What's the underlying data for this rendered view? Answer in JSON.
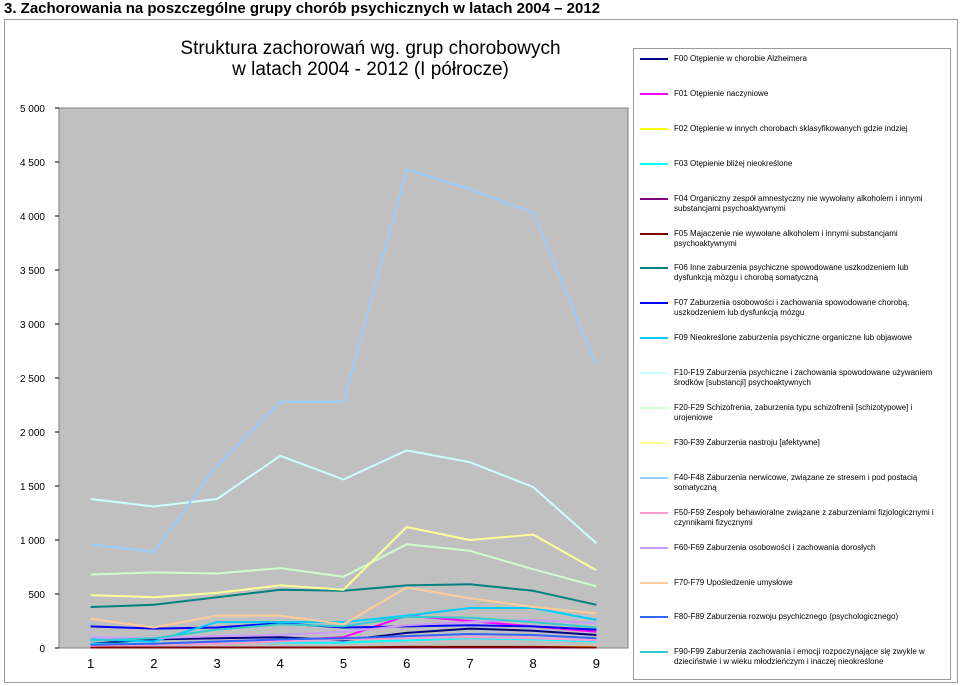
{
  "page": {
    "heading": "3. Zachorowania na poszczególne grupy chorób psychicznych w latach 2004 – 2012"
  },
  "chart_data": {
    "type": "line",
    "title_line1": "Struktura zachorowań wg. grup chorobowych",
    "title_line2": "w latach 2004 - 2012 (I półrocze)",
    "xlabel": "",
    "ylabel": "",
    "categories": [
      "1",
      "2",
      "3",
      "4",
      "5",
      "6",
      "7",
      "8",
      "9"
    ],
    "ylim": [
      0,
      5000
    ],
    "yticks": [
      {
        "value": 0,
        "label": "0"
      },
      {
        "value": 500,
        "label": "500"
      },
      {
        "value": 1000,
        "label": "1 000"
      },
      {
        "value": 1500,
        "label": "1 500"
      },
      {
        "value": 2000,
        "label": "2 000"
      },
      {
        "value": 2500,
        "label": "2 500"
      },
      {
        "value": 3000,
        "label": "3 000"
      },
      {
        "value": 3500,
        "label": "3 500"
      },
      {
        "value": 4000,
        "label": "4 000"
      },
      {
        "value": 4500,
        "label": "4 500"
      },
      {
        "value": 5000,
        "label": "5 000"
      }
    ],
    "grid": false,
    "legend_position": "right",
    "series": [
      {
        "name": "F00 Otępienie w chorobie Alzheimera",
        "color": "#000080",
        "values": [
          40,
          80,
          90,
          100,
          70,
          140,
          180,
          160,
          120
        ]
      },
      {
        "name": "F01 Otępienie naczyniowe",
        "color": "#ff00ff",
        "values": [
          30,
          30,
          50,
          70,
          100,
          300,
          250,
          200,
          150
        ]
      },
      {
        "name": "F02 Otępienie w innych chorobach sklasyfikowanych gdzie indziej",
        "color": "#ffff00",
        "values": [
          5,
          5,
          5,
          5,
          5,
          10,
          10,
          10,
          10
        ]
      },
      {
        "name": "F03 Otępienie bliżej nieokreślone",
        "color": "#00ffff",
        "values": [
          40,
          40,
          60,
          50,
          50,
          70,
          90,
          80,
          60
        ]
      },
      {
        "name": "F04 Organiczny zespół amnestyczny nie wywołany alkoholem i innymi substancjami psychoaktywnymi",
        "color": "#800080",
        "values": [
          5,
          5,
          5,
          5,
          5,
          5,
          5,
          5,
          5
        ]
      },
      {
        "name": "F05 Majaczenie nie wywołane alkoholem i innymi substancjami psychoaktywnymi",
        "color": "#800000",
        "values": [
          5,
          5,
          5,
          5,
          5,
          10,
          10,
          10,
          5
        ]
      },
      {
        "name": "F06 Inne zaburzenia psychiczne spowodowane uszkodzeniem lub dysfunkcją mózgu i chorobą somatyczną",
        "color": "#008080",
        "values": [
          380,
          400,
          470,
          540,
          530,
          580,
          590,
          530,
          400
        ]
      },
      {
        "name": "F07 Zaburzenia osobowości i zachowania spowodowane chorobą, uszkodzeniem lub dysfunkcją mózgu",
        "color": "#0000ff",
        "values": [
          200,
          180,
          190,
          230,
          190,
          200,
          210,
          200,
          170
        ]
      },
      {
        "name": "F09 Nieokreślone zaburzenia psychiczne organiczne lub objawowe",
        "color": "#00ccff",
        "values": [
          80,
          60,
          240,
          240,
          240,
          300,
          370,
          370,
          260
        ]
      },
      {
        "name": "F10-F19 Zaburzenia psychiczne i zachowania spowodowane używaniem środków [substancji] psychoaktywnych",
        "color": "#ccffff",
        "values": [
          1380,
          1310,
          1380,
          1780,
          1560,
          1830,
          1720,
          1490,
          970
        ]
      },
      {
        "name": "F20-F29 Schizofrenia, zaburzenia typu schizofrenii [schizotypowe] i urojeniowe",
        "color": "#ccffcc",
        "values": [
          680,
          700,
          690,
          740,
          660,
          960,
          900,
          730,
          570
        ]
      },
      {
        "name": "F30-F39 Zaburzenia nastroju [afektywne]",
        "color": "#ffff99",
        "values": [
          490,
          470,
          510,
          580,
          540,
          1120,
          1000,
          1050,
          720
        ]
      },
      {
        "name": "F40-F48 Zaburzenia nerwicowe, związane ze stresem i pod postacią somatyczną",
        "color": "#99ccff",
        "values": [
          960,
          890,
          1690,
          2280,
          2280,
          4430,
          4250,
          4030,
          2620
        ]
      },
      {
        "name": "F50-F59 Zespoły behawioralne związane z zaburzeniami fizjologicznymi i czynnikami fizycznymi",
        "color": "#ff99cc",
        "values": [
          20,
          30,
          40,
          60,
          80,
          90,
          100,
          90,
          70
        ]
      },
      {
        "name": "F60-F69 Zaburzenia osobowości i zachowania dorosłych",
        "color": "#cc99ff",
        "values": [
          100,
          90,
          110,
          120,
          150,
          210,
          240,
          260,
          230
        ]
      },
      {
        "name": "F70-F79 Upośledzenie umysłowe",
        "color": "#ffcc99",
        "values": [
          270,
          190,
          300,
          300,
          220,
          560,
          460,
          380,
          320
        ]
      },
      {
        "name": "F80-F89 Zaburzenia rozwoju psychicznego (psychologicznego)",
        "color": "#3366ff",
        "values": [
          30,
          40,
          60,
          80,
          90,
          110,
          130,
          120,
          90
        ]
      },
      {
        "name": "F90-F99 Zaburzenia zachowania i emocji rozpoczynające się zwykle w dzieciństwie i w wieku młodzieńczym i inaczej nieokreślone",
        "color": "#33cccc",
        "values": [
          70,
          90,
          170,
          220,
          200,
          290,
          280,
          240,
          190
        ]
      }
    ]
  }
}
